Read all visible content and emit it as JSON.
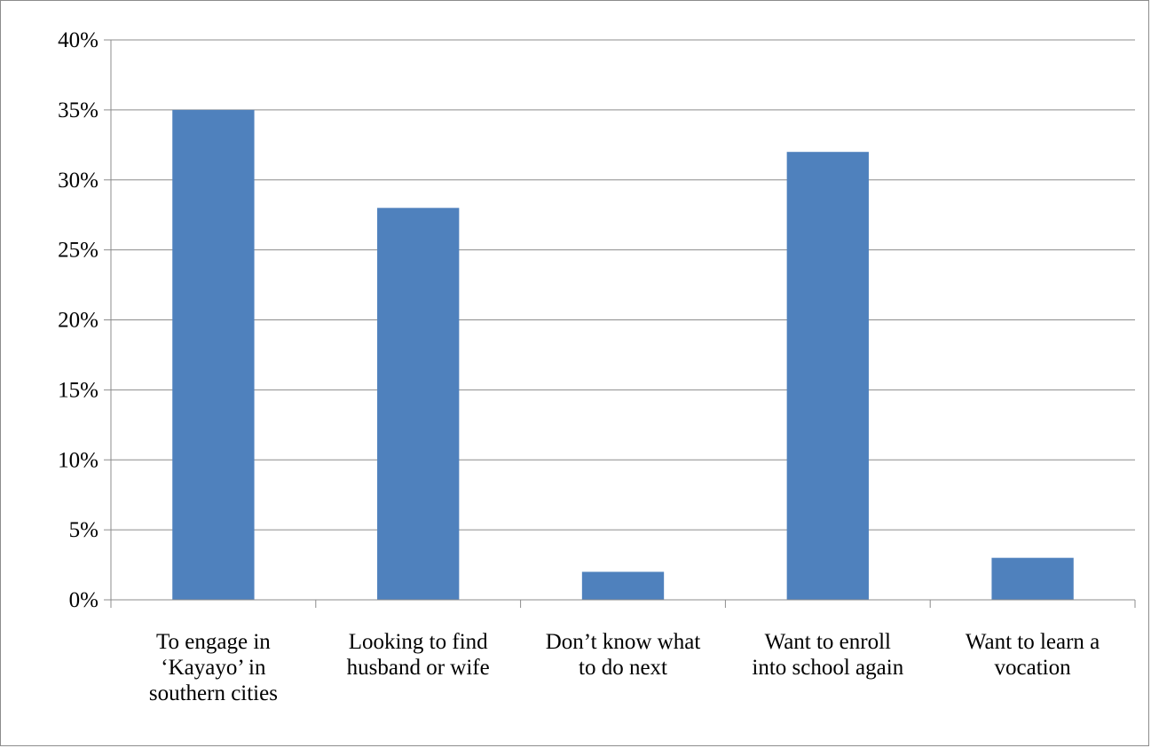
{
  "chart_data": {
    "type": "bar",
    "categories": [
      "To engage in ‘Kayayo’ in southern cities",
      "Looking to find husband or wife",
      "Don’t know what to do next",
      "Want to enroll into school again",
      "Want to learn a vocation"
    ],
    "category_lines": [
      [
        "To engage in",
        "‘Kayayo’ in",
        "southern cities"
      ],
      [
        "Looking to find",
        "husband or wife"
      ],
      [
        "Don’t know what",
        "to do next"
      ],
      [
        "Want to enroll",
        "into school again"
      ],
      [
        "Want to learn a",
        "vocation"
      ]
    ],
    "values": [
      35,
      28,
      2,
      32,
      3
    ],
    "value_unit": "%",
    "ylim": [
      0,
      40
    ],
    "y_ticks": [
      0,
      5,
      10,
      15,
      20,
      25,
      30,
      35,
      40
    ],
    "y_tick_labels": [
      "0%",
      "5%",
      "10%",
      "15%",
      "20%",
      "25%",
      "30%",
      "35%",
      "40%"
    ],
    "bar_color": "#4f81bd",
    "grid": true,
    "legend": "none",
    "title": "",
    "xlabel": "",
    "ylabel": ""
  }
}
